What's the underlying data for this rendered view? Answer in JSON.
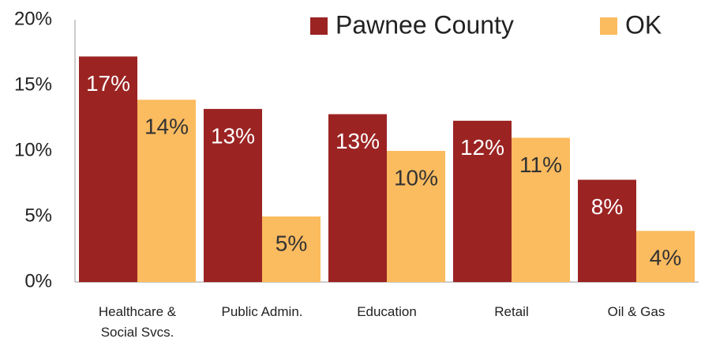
{
  "chart_data": {
    "type": "bar",
    "categories": [
      "Healthcare & Social Svcs.",
      "Public Admin.",
      "Education",
      "Retail",
      "Oil & Gas"
    ],
    "series": [
      {
        "name": "Pawnee County",
        "color": "#9b2423",
        "values": [
          17.2,
          13.2,
          12.8,
          12.3,
          7.8
        ],
        "value_labels": [
          "17%",
          "13%",
          "13%",
          "12%",
          "8%"
        ]
      },
      {
        "name": "OK",
        "color": "#fbbb5f",
        "values": [
          13.9,
          5.0,
          10.0,
          11.0,
          3.9
        ],
        "value_labels": [
          "14%",
          "5%",
          "10%",
          "11%",
          "4%"
        ]
      }
    ],
    "ylim": [
      0,
      20
    ],
    "yticks": [
      {
        "value": 0,
        "label": "0%"
      },
      {
        "value": 5,
        "label": "5%"
      },
      {
        "value": 10,
        "label": "10%"
      },
      {
        "value": 15,
        "label": "15%"
      },
      {
        "value": 20,
        "label": "20%"
      }
    ],
    "grid": false,
    "legend": "top-right"
  }
}
